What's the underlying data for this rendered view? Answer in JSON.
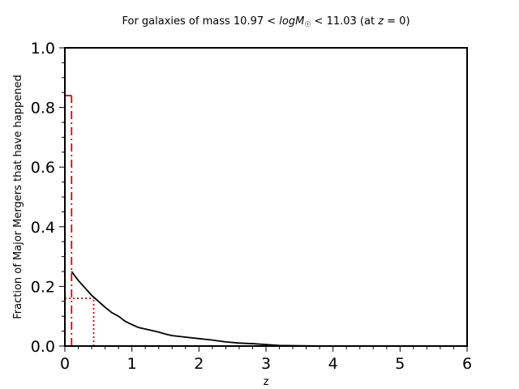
{
  "chart_data": {
    "type": "line",
    "title": "For galaxies of mass 10.97 < logM☉ < 11.03 (at z = 0)",
    "title_parts": {
      "prefix": "For galaxies of mass 10.97 < ",
      "math": "logM",
      "sub": "☉",
      "middle": " < 11.03 (at ",
      "z": "z",
      "suffix": " = 0)"
    },
    "xlabel": "z",
    "ylabel": "Fraction of Major Mergers that have happened",
    "xlim": [
      0,
      6
    ],
    "ylim": [
      0,
      1
    ],
    "x_ticks": [
      "0",
      "1",
      "2",
      "3",
      "4",
      "5",
      "6"
    ],
    "y_ticks": [
      "0.0",
      "0.2",
      "0.4",
      "0.6",
      "0.8",
      "1.0"
    ],
    "grid": false,
    "series": [
      {
        "color": "#000000",
        "style": "solid",
        "x": [
          0.1,
          0.15,
          0.2,
          0.3,
          0.4,
          0.5,
          0.6,
          0.7,
          0.8,
          0.9,
          1.0,
          1.1,
          1.2,
          1.3,
          1.4,
          1.5,
          1.6,
          1.8,
          2.0,
          2.2,
          2.4,
          2.6,
          2.8,
          3.0,
          3.2,
          3.5,
          4.0,
          5.0,
          6.0
        ],
        "y": [
          0.25,
          0.235,
          0.22,
          0.195,
          0.17,
          0.15,
          0.13,
          0.112,
          0.1,
          0.083,
          0.072,
          0.062,
          0.057,
          0.052,
          0.047,
          0.04,
          0.035,
          0.03,
          0.025,
          0.02,
          0.014,
          0.01,
          0.008,
          0.005,
          0.002,
          0.001,
          0.0,
          0.0,
          0.0
        ]
      }
    ],
    "reference_lines": [
      {
        "color": "#dd0000",
        "style": "dashdot",
        "x": [
          0.1,
          0.1
        ],
        "y": [
          0.0,
          0.84
        ]
      },
      {
        "color": "#dd0000",
        "style": "dashdot",
        "x": [
          0.0,
          0.1
        ],
        "y": [
          0.84,
          0.84
        ]
      },
      {
        "color": "#dd0000",
        "style": "dotted",
        "x": [
          0.0,
          0.43
        ],
        "y": [
          0.16,
          0.16
        ]
      },
      {
        "color": "#dd0000",
        "style": "dotted",
        "x": [
          0.43,
          0.43
        ],
        "y": [
          0.0,
          0.16
        ]
      }
    ]
  }
}
